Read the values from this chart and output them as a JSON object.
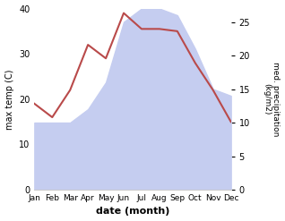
{
  "months": [
    "Jan",
    "Feb",
    "Mar",
    "Apr",
    "May",
    "Jun",
    "Jul",
    "Aug",
    "Sep",
    "Oct",
    "Nov",
    "Dec"
  ],
  "month_indices": [
    0,
    1,
    2,
    3,
    4,
    5,
    6,
    7,
    8,
    9,
    10,
    11
  ],
  "temperature": [
    19,
    16,
    22,
    32,
    29,
    39,
    35.5,
    35.5,
    35,
    28,
    22,
    15
  ],
  "precipitation": [
    10,
    10,
    10,
    12,
    16,
    25,
    27,
    27,
    26,
    21,
    15,
    14
  ],
  "temp_color": "#b94a4a",
  "precip_fill_color": "#c5cdf0",
  "xlabel": "date (month)",
  "ylabel_left": "max temp (C)",
  "ylabel_right": "med. precipitation\n(kg/m2)",
  "ylim_left": [
    0,
    40
  ],
  "ylim_right": [
    0,
    27
  ],
  "yticks_left": [
    0,
    10,
    20,
    30,
    40
  ],
  "yticks_right": [
    0,
    5,
    10,
    15,
    20,
    25
  ],
  "background_color": "#ffffff"
}
